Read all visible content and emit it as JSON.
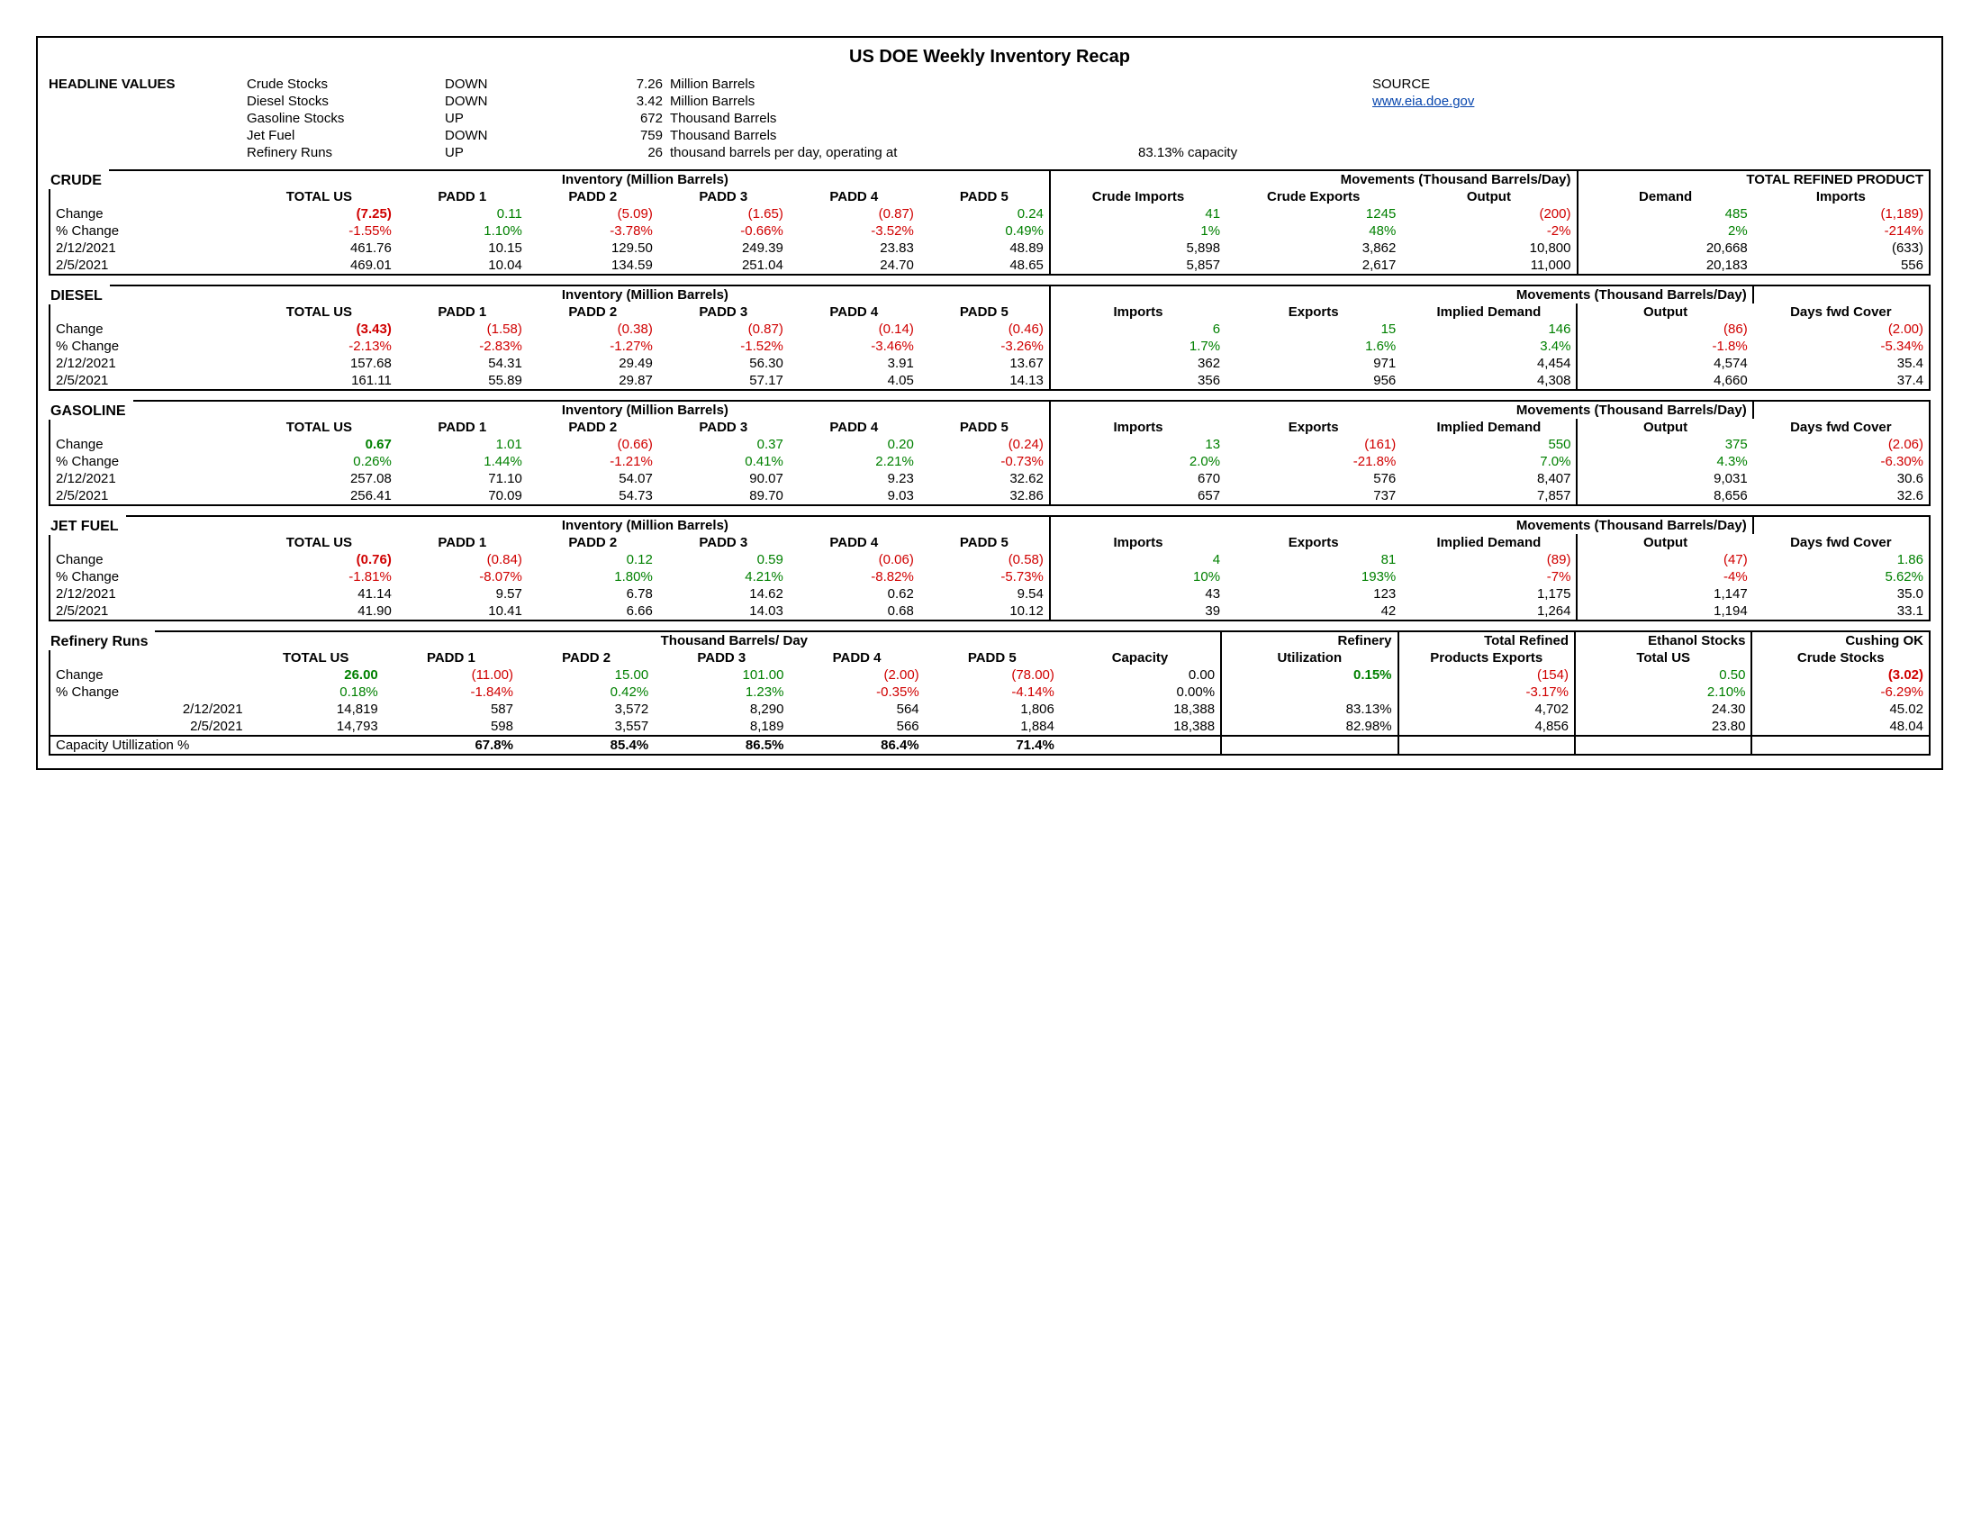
{
  "title": "US DOE Weekly Inventory Recap",
  "source_label": "SOURCE",
  "source_link": "www.eia.doe.gov",
  "headline_label": "HEADLINE VALUES",
  "headline": [
    {
      "name": "Crude Stocks",
      "dir": "DOWN",
      "val": "7.26",
      "unit": "Million Barrels"
    },
    {
      "name": "Diesel Stocks",
      "dir": "DOWN",
      "val": "3.42",
      "unit": "Million Barrels"
    },
    {
      "name": "Gasoline Stocks",
      "dir": "UP",
      "val": "672",
      "unit": "Thousand Barrels"
    },
    {
      "name": "Jet Fuel",
      "dir": "DOWN",
      "val": "759",
      "unit": "Thousand Barrels"
    },
    {
      "name": "Refinery Runs",
      "dir": "UP",
      "val": "26",
      "unit": "thousand barrels per day, operating at",
      "extra": "83.13% capacity"
    }
  ],
  "row_labels": {
    "change": "Change",
    "pct": "% Change",
    "d1": "2/12/2021",
    "d2": "2/5/2021",
    "caputil": "Capacity Utillization %"
  },
  "crude": {
    "label": "CRUDE",
    "inv_hdr": "Inventory (Million Barrels)",
    "mov_hdr": "Movements (Thousand Barrels/Day)",
    "trp_hdr": "TOTAL REFINED PRODUCT",
    "cols": [
      "TOTAL US",
      "PADD 1",
      "PADD 2",
      "PADD 3",
      "PADD 4",
      "PADD 5",
      "Crude Imports",
      "Crude Exports",
      "Output",
      "Demand",
      "Imports"
    ],
    "change": [
      "(7.25)",
      "0.11",
      "(5.09)",
      "(1.65)",
      "(0.87)",
      "0.24",
      "41",
      "1245",
      "(200)",
      "485",
      "(1,189)"
    ],
    "change_cls": [
      "red bold",
      "green",
      "red",
      "red",
      "red",
      "green",
      "green",
      "green",
      "red",
      "green",
      "red"
    ],
    "pct": [
      "-1.55%",
      "1.10%",
      "-3.78%",
      "-0.66%",
      "-3.52%",
      "0.49%",
      "1%",
      "48%",
      "-2%",
      "2%",
      "-214%"
    ],
    "pct_cls": [
      "red",
      "green",
      "red",
      "red",
      "red",
      "green",
      "green",
      "green",
      "red",
      "green",
      "red"
    ],
    "d1": [
      "461.76",
      "10.15",
      "129.50",
      "249.39",
      "23.83",
      "48.89",
      "5,898",
      "3,862",
      "10,800",
      "20,668",
      "(633)"
    ],
    "d2": [
      "469.01",
      "10.04",
      "134.59",
      "251.04",
      "24.70",
      "48.65",
      "5,857",
      "2,617",
      "11,000",
      "20,183",
      "556"
    ]
  },
  "diesel": {
    "label": "DIESEL",
    "inv_hdr": "Inventory (Million Barrels)",
    "mov_hdr": "Movements (Thousand Barrels/Day)",
    "cols": [
      "TOTAL US",
      "PADD 1",
      "PADD 2",
      "PADD 3",
      "PADD 4",
      "PADD 5",
      "Imports",
      "Exports",
      "Implied Demand",
      "Output",
      "Days fwd Cover"
    ],
    "change": [
      "(3.43)",
      "(1.58)",
      "(0.38)",
      "(0.87)",
      "(0.14)",
      "(0.46)",
      "6",
      "15",
      "146",
      "(86)",
      "(2.00)"
    ],
    "change_cls": [
      "red bold",
      "red",
      "red",
      "red",
      "red",
      "red",
      "green",
      "green",
      "green",
      "red",
      "red"
    ],
    "pct": [
      "-2.13%",
      "-2.83%",
      "-1.27%",
      "-1.52%",
      "-3.46%",
      "-3.26%",
      "1.7%",
      "1.6%",
      "3.4%",
      "-1.8%",
      "-5.34%"
    ],
    "pct_cls": [
      "red",
      "red",
      "red",
      "red",
      "red",
      "red",
      "green",
      "green",
      "green",
      "red",
      "red"
    ],
    "d1": [
      "157.68",
      "54.31",
      "29.49",
      "56.30",
      "3.91",
      "13.67",
      "362",
      "971",
      "4,454",
      "4,574",
      "35.4"
    ],
    "d2": [
      "161.11",
      "55.89",
      "29.87",
      "57.17",
      "4.05",
      "14.13",
      "356",
      "956",
      "4,308",
      "4,660",
      "37.4"
    ]
  },
  "gasoline": {
    "label": "GASOLINE",
    "inv_hdr": "Inventory (Million Barrels)",
    "mov_hdr": "Movements (Thousand Barrels/Day)",
    "cols": [
      "TOTAL US",
      "PADD 1",
      "PADD 2",
      "PADD 3",
      "PADD 4",
      "PADD 5",
      "Imports",
      "Exports",
      "Implied Demand",
      "Output",
      "Days fwd Cover"
    ],
    "change": [
      "0.67",
      "1.01",
      "(0.66)",
      "0.37",
      "0.20",
      "(0.24)",
      "13",
      "(161)",
      "550",
      "375",
      "(2.06)"
    ],
    "change_cls": [
      "green bold",
      "green",
      "red",
      "green",
      "green",
      "red",
      "green",
      "red",
      "green",
      "green",
      "red"
    ],
    "pct": [
      "0.26%",
      "1.44%",
      "-1.21%",
      "0.41%",
      "2.21%",
      "-0.73%",
      "2.0%",
      "-21.8%",
      "7.0%",
      "4.3%",
      "-6.30%"
    ],
    "pct_cls": [
      "green",
      "green",
      "red",
      "green",
      "green",
      "red",
      "green",
      "red",
      "green",
      "green",
      "red"
    ],
    "d1": [
      "257.08",
      "71.10",
      "54.07",
      "90.07",
      "9.23",
      "32.62",
      "670",
      "576",
      "8,407",
      "9,031",
      "30.6"
    ],
    "d2": [
      "256.41",
      "70.09",
      "54.73",
      "89.70",
      "9.03",
      "32.86",
      "657",
      "737",
      "7,857",
      "8,656",
      "32.6"
    ]
  },
  "jet": {
    "label": "JET FUEL",
    "inv_hdr": "Inventory (Million Barrels)",
    "mov_hdr": "Movements (Thousand Barrels/Day)",
    "cols": [
      "TOTAL US",
      "PADD 1",
      "PADD 2",
      "PADD 3",
      "PADD 4",
      "PADD 5",
      "Imports",
      "Exports",
      "Implied Demand",
      "Output",
      "Days fwd Cover"
    ],
    "change": [
      "(0.76)",
      "(0.84)",
      "0.12",
      "0.59",
      "(0.06)",
      "(0.58)",
      "4",
      "81",
      "(89)",
      "(47)",
      "1.86"
    ],
    "change_cls": [
      "red bold",
      "red",
      "green",
      "green",
      "red",
      "red",
      "green",
      "green",
      "red",
      "red",
      "green"
    ],
    "pct": [
      "-1.81%",
      "-8.07%",
      "1.80%",
      "4.21%",
      "-8.82%",
      "-5.73%",
      "10%",
      "193%",
      "-7%",
      "-4%",
      "5.62%"
    ],
    "pct_cls": [
      "red",
      "red",
      "green",
      "green",
      "red",
      "red",
      "green",
      "green",
      "red",
      "red",
      "green"
    ],
    "d1": [
      "41.14",
      "9.57",
      "6.78",
      "14.62",
      "0.62",
      "9.54",
      "43",
      "123",
      "1,175",
      "1,147",
      "35.0"
    ],
    "d2": [
      "41.90",
      "10.41",
      "6.66",
      "14.03",
      "0.68",
      "10.12",
      "39",
      "42",
      "1,264",
      "1,194",
      "33.1"
    ]
  },
  "refinery": {
    "label": "Refinery Runs",
    "tbd_hdr": "Thousand Barrels/ Day",
    "extra_hdrs": [
      "Refinery",
      "Total Refined",
      "Ethanol Stocks",
      "Cushing OK"
    ],
    "cols": [
      "TOTAL US",
      "PADD 1",
      "PADD 2",
      "PADD 3",
      "PADD 4",
      "PADD 5",
      "Capacity",
      "Utilization",
      "Products Exports",
      "Total US",
      "Crude Stocks"
    ],
    "change": [
      "26.00",
      "(11.00)",
      "15.00",
      "101.00",
      "(2.00)",
      "(78.00)",
      "0.00",
      "0.15%",
      "(154)",
      "0.50",
      "(3.02)"
    ],
    "change_cls": [
      "green bold",
      "red",
      "green",
      "green",
      "red",
      "red",
      "",
      "green bold",
      "red",
      "green",
      "red bold"
    ],
    "pct": [
      "0.18%",
      "-1.84%",
      "0.42%",
      "1.23%",
      "-0.35%",
      "-4.14%",
      "0.00%",
      "",
      "-3.17%",
      "2.10%",
      "-6.29%"
    ],
    "pct_cls": [
      "green",
      "red",
      "green",
      "green",
      "red",
      "red",
      "",
      "",
      "red",
      "green",
      "red"
    ],
    "d1": [
      "14,819",
      "587",
      "3,572",
      "8,290",
      "564",
      "1,806",
      "18,388",
      "83.13%",
      "4,702",
      "24.30",
      "45.02"
    ],
    "d2": [
      "14,793",
      "598",
      "3,557",
      "8,189",
      "566",
      "1,884",
      "18,388",
      "82.98%",
      "4,856",
      "23.80",
      "48.04"
    ],
    "caputil": [
      "",
      "67.8%",
      "85.4%",
      "86.5%",
      "86.4%",
      "71.4%",
      "",
      "",
      "",
      "",
      ""
    ]
  }
}
